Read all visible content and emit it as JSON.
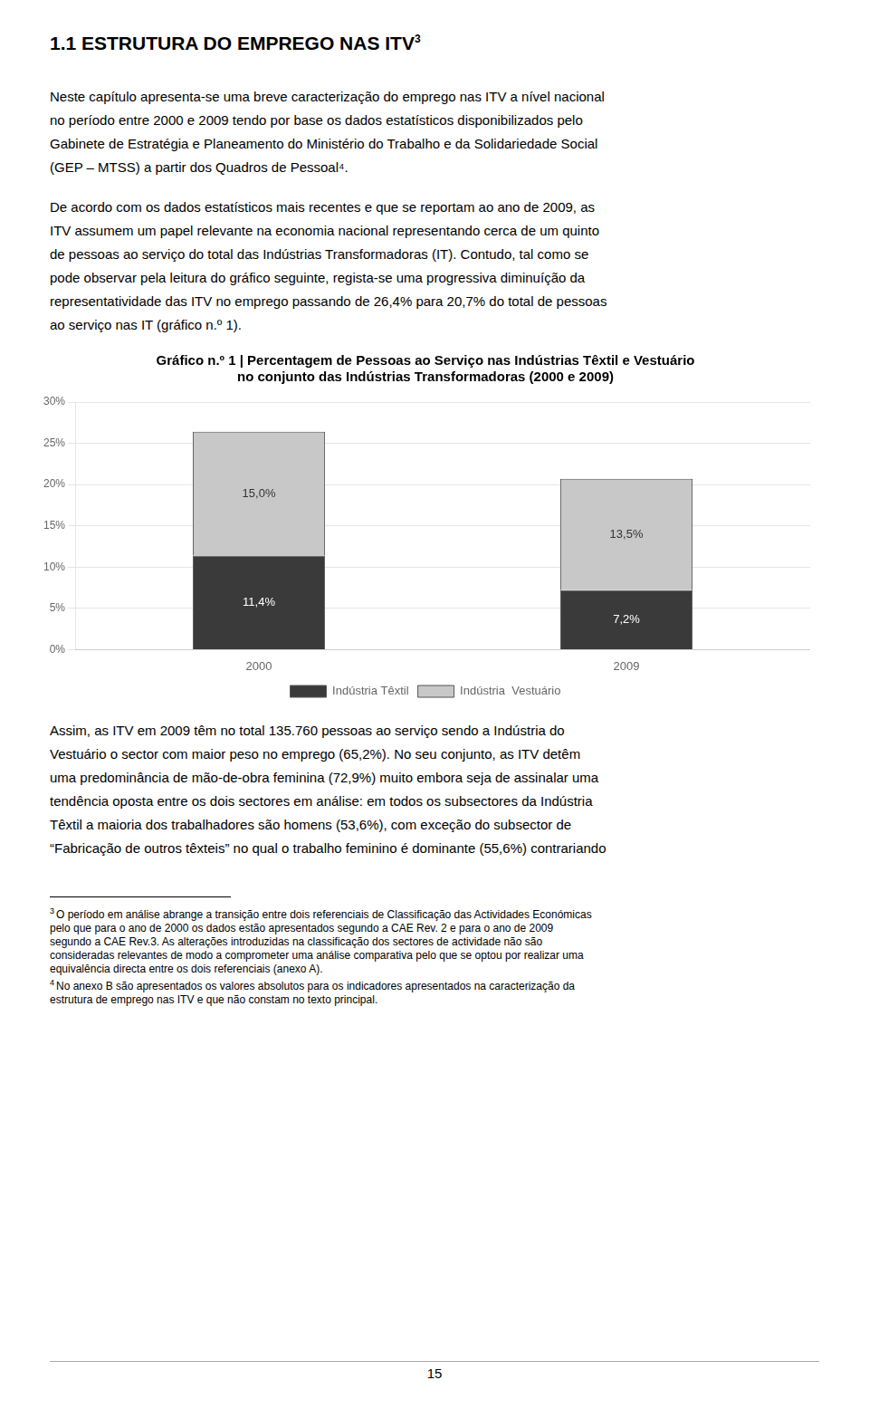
{
  "page_title": "1.1 ESTRUTURA DO EMPREGO NAS ITV",
  "page_title_superscript": "3",
  "paragraphs_before": [
    [
      "Neste capítulo apresenta-se uma breve caracterização do emprego nas ITV a nível nacional",
      "no período entre 2000 e 2009 tendo por base os dados estatísticos disponibilizados pelo",
      "Gabinete de Estratégia e Planeamento do Ministério do Trabalho e da Solidariedade Social",
      "(GEP – MTSS) a partir dos Quadros de Pessoal⁴."
    ],
    [
      "De acordo com os dados estatísticos mais recentes e que se reportam ao ano de 2009, as",
      "ITV assumem um papel relevante na economia nacional representando cerca de um quinto",
      "de pessoas ao serviço do total das Indústrias Transformadoras (IT). Contudo, tal como se",
      "pode observar pela leitura do gráfico seguinte, regista-se uma progressiva diminuíção da",
      "representatividade das ITV no emprego passando de 26,4% para 20,7% do total de pessoas",
      "ao serviço nas IT (gráfico n.º 1)."
    ]
  ],
  "paragraphs_after": [
    [
      "Assim, as ITV em 2009 têm no total 135.760 pessoas ao serviço sendo a Indústria do",
      "Vestuário o sector com maior peso no emprego (65,2%). No seu conjunto, as ITV detêm",
      "uma predominância de mão-de-obra feminina (72,9%) muito embora seja de assinalar uma",
      "tendência oposta entre os dois sectores em análise: em todos os subsectores da Indústria",
      "Têxtil a maioria dos trabalhadores são homens (53,6%), com exceção do subsector de",
      "“Fabricação de outros têxteis” no qual o trabalho feminino é dominante (55,6%) contrariando"
    ]
  ],
  "footnotes": [
    {
      "mark": "3",
      "lines": [
        "O período em análise abrange a transição entre dois referenciais de Classificação das Actividades Económicas",
        "pelo que para o ano de 2000 os dados estão apresentados segundo a CAE Rev. 2 e para o ano de 2009",
        "segundo a CAE Rev.3. As alterações introduzidas na classificação dos sectores de actividade não são",
        "consideradas relevantes de modo a comprometer uma análise comparativa pelo que se optou por realizar uma",
        "equivalência directa entre os dois referenciais (anexo A)."
      ]
    },
    {
      "mark": "4",
      "lines": [
        "No anexo B são apresentados os valores absolutos para os indicadores apresentados na caracterização da",
        "estrutura de emprego nas ITV e que não constam no texto principal."
      ]
    }
  ],
  "page_number": "15",
  "chart_data": {
    "type": "bar",
    "title": [
      "Gráfico n.º 1 | Percentagem de Pessoas ao Serviço nas Indústrias Têxtil e Vestuário",
      "no conjunto das Indústrias Transformadoras (2000 e 2009)"
    ],
    "categories": [
      "2000",
      "2009"
    ],
    "stacked": true,
    "series": [
      {
        "name": "Indústria Têxtil",
        "color": "#3a3a3a",
        "values": [
          11.4,
          7.2
        ],
        "value_labels": [
          "11,4%",
          "7,2%"
        ]
      },
      {
        "name": "Indústria  Vestuário",
        "color": "#c8c8c8",
        "values": [
          15.0,
          13.5
        ],
        "value_labels": [
          "15,0%",
          "13,5%"
        ]
      }
    ],
    "ylim": [
      0,
      30
    ],
    "yticks": [
      {
        "value": 0,
        "label": "0%"
      },
      {
        "value": 5,
        "label": "5%"
      },
      {
        "value": 10,
        "label": "10%"
      },
      {
        "value": 15,
        "label": "15%"
      },
      {
        "value": 20,
        "label": "20%"
      },
      {
        "value": 25,
        "label": "25%"
      },
      {
        "value": 30,
        "label": "30%"
      }
    ],
    "grid": true,
    "legend": "bottom",
    "data_labels": true
  }
}
